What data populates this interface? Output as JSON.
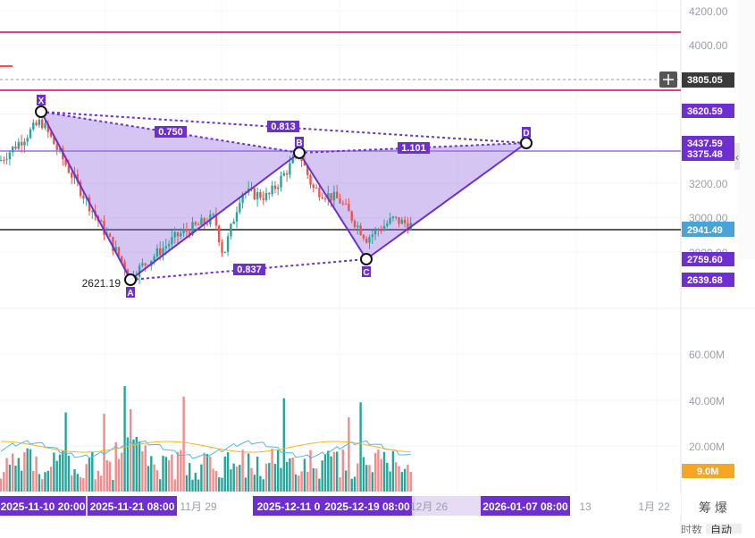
{
  "chart_data": {
    "type": "candlestick",
    "price_axis": {
      "ticks": [
        2800,
        3000,
        3200,
        3400,
        3600,
        3800,
        4000,
        4200
      ],
      "shown_labels": [
        "4200.00",
        "4000.00",
        "3200.00",
        "3000.00",
        "2800.00"
      ]
    },
    "volume_axis": {
      "ticks": [
        "60.00M",
        "40.00M",
        "20.00M"
      ]
    },
    "x_labels_plain": [
      "11月 29",
      "12月 26",
      "13",
      "1月 22"
    ],
    "x_labels_highlight": [
      "2025-11-10 20:00",
      "2025-11-21 08:00",
      "2025-12-11 0",
      "2025-12-19 08:00",
      "2026-01-07 08:00"
    ],
    "current_price": "2941.49",
    "crosshair_price": "3805.05",
    "volume_label": "9.0M",
    "price_labels": [
      {
        "text": "3620.59",
        "color": "#6d2fd0"
      },
      {
        "text": "3437.59",
        "color": "#6d2fd0"
      },
      {
        "text": "3375.48",
        "color": "#6d2fd0"
      },
      {
        "text": "2759.60",
        "color": "#6d2fd0"
      },
      {
        "text": "2639.68",
        "color": "#6d2fd0"
      }
    ],
    "pattern": {
      "name": "XABCD",
      "points": [
        {
          "label": "X",
          "price": 3620.59
        },
        {
          "label": "A",
          "price": 2621.19
        },
        {
          "label": "B",
          "price": 3375.48
        },
        {
          "label": "C",
          "price": 2759.6
        },
        {
          "label": "D",
          "price": 3437.59
        }
      ],
      "ratios": [
        "0.750",
        "0.813",
        "0.837",
        "1.101"
      ],
      "a_value_label": "2621.19"
    },
    "horizontal_lines": [
      {
        "color": "#e0408a"
      },
      {
        "color": "#e0408a"
      },
      {
        "color": "#9b6ee0"
      },
      {
        "color": "#222222"
      }
    ],
    "colors": {
      "up": "#26a69a",
      "down": "#ef5350",
      "pattern": "#6d2fd0",
      "current": "#4aa3d8",
      "volume_label": "#f5a623"
    }
  },
  "bottom_ui": {
    "left_chars": "筹 爆",
    "right_tabs": [
      "时数",
      "自动"
    ]
  }
}
